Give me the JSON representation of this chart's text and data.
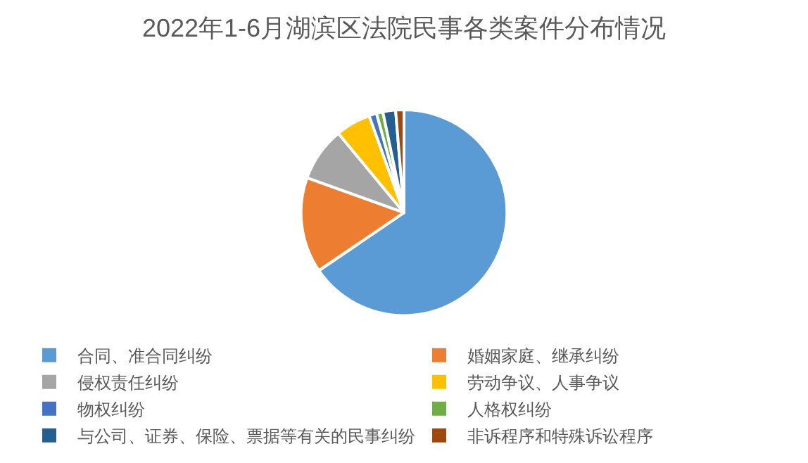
{
  "chart_data": {
    "type": "pie",
    "title": "2022年1-6月湖滨区法院民事各类案件分布情况",
    "categories": [
      "合同、准合同纠纷",
      "婚姻家庭、继承纠纷",
      "侵权责任纠纷",
      "劳动争议、人事争议",
      "物权纠纷",
      "人格权纠纷",
      "与公司、证券、保险、票据等有关的民事纠纷",
      "非诉程序和特殊诉讼程序"
    ],
    "values": [
      65.5,
      15,
      8.5,
      5.5,
      1.2,
      1,
      2,
      1.3
    ],
    "colors": [
      "#5b9bd5",
      "#ed7d31",
      "#a5a5a5",
      "#ffc000",
      "#4472c4",
      "#70ad47",
      "#255e91",
      "#9e480e"
    ],
    "legend": "bottom"
  }
}
